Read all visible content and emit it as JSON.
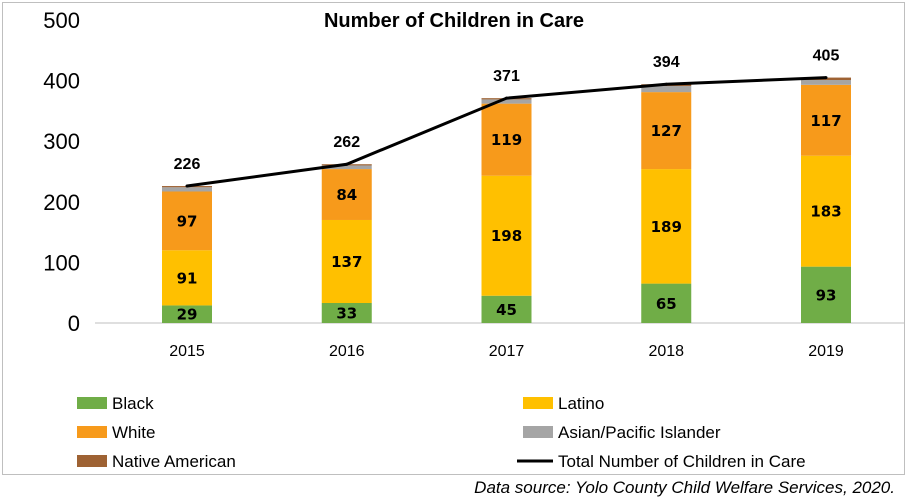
{
  "chart_data": {
    "type": "bar",
    "stacked": true,
    "title": "Number of Children in Care",
    "categories": [
      "2015",
      "2016",
      "2017",
      "2018",
      "2019"
    ],
    "ylim": [
      0,
      500
    ],
    "yticks": [
      0,
      100,
      200,
      300,
      400,
      500
    ],
    "series": [
      {
        "name": "Black",
        "color": "#70ad47",
        "values": [
          29,
          33,
          45,
          65,
          93
        ],
        "labeled": true
      },
      {
        "name": "Latino",
        "color": "#ffc000",
        "values": [
          91,
          137,
          198,
          189,
          183
        ],
        "labeled": true
      },
      {
        "name": "White",
        "color": "#f79a1b",
        "values": [
          97,
          84,
          119,
          127,
          117
        ],
        "labeled": true
      },
      {
        "name": "Asian/Pacific Islander",
        "color": "#a5a5a5",
        "values": [
          7,
          6,
          7,
          10,
          8
        ],
        "labeled": false
      },
      {
        "name": "Native American",
        "color": "#9e6233",
        "values": [
          2,
          2,
          2,
          3,
          4
        ],
        "labeled": false
      }
    ],
    "line": {
      "name": "Total Number of Children in Care",
      "color": "#000000",
      "values": [
        226,
        262,
        371,
        394,
        405
      ]
    },
    "legend": [
      {
        "name": "Black",
        "type": "bar",
        "color": "#70ad47"
      },
      {
        "name": "Latino",
        "type": "bar",
        "color": "#ffc000"
      },
      {
        "name": "White",
        "type": "bar",
        "color": "#f79a1b"
      },
      {
        "name": "Asian/Pacific Islander",
        "type": "bar",
        "color": "#a5a5a5"
      },
      {
        "name": "Native American",
        "type": "bar",
        "color": "#9e6233"
      },
      {
        "name": "Total Number of Children in Care",
        "type": "line",
        "color": "#000000"
      }
    ],
    "legend_position": "bottom"
  },
  "source": "Data source: Yolo County Child Welfare Services, 2020."
}
